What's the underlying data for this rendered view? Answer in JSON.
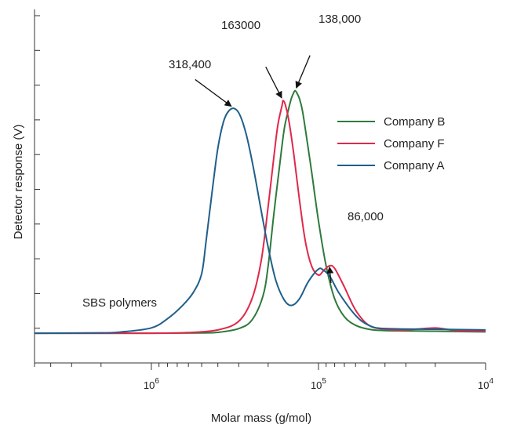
{
  "chart_data": {
    "type": "line",
    "title": "",
    "xlabel": "Molar mass (g/mol)",
    "ylabel": "Detector response (V)",
    "x_scale": "log",
    "x_reversed": true,
    "xlim": [
      5000000,
      10000
    ],
    "ylim": [
      -0.45,
      4.9
    ],
    "x_ticks": [
      {
        "value": 1000000,
        "base": "10",
        "exp": "6"
      },
      {
        "value": 100000,
        "base": "10",
        "exp": "5"
      },
      {
        "value": 10000,
        "base": "10",
        "exp": "4"
      }
    ],
    "y_tick_count": 11,
    "grid": false,
    "legend": {
      "position": "right"
    },
    "series": [
      {
        "name": "Company B",
        "color": "#2e7a3c",
        "points": [
          [
            5000000,
            0
          ],
          [
            1000000,
            0
          ],
          [
            500000,
            0.004
          ],
          [
            400000,
            0.013
          ],
          [
            300000,
            0.07
          ],
          [
            250000,
            0.2
          ],
          [
            215000,
            0.56
          ],
          [
            200000,
            1.02
          ],
          [
            185000,
            1.8
          ],
          [
            170000,
            2.58
          ],
          [
            160000,
            3.1
          ],
          [
            150000,
            3.42
          ],
          [
            145000,
            3.56
          ],
          [
            140000,
            3.65
          ],
          [
            138000,
            3.67
          ],
          [
            135000,
            3.64
          ],
          [
            130000,
            3.55
          ],
          [
            125000,
            3.38
          ],
          [
            120000,
            3.1
          ],
          [
            110000,
            2.45
          ],
          [
            100000,
            1.7
          ],
          [
            90000,
            1.02
          ],
          [
            80000,
            0.52
          ],
          [
            70000,
            0.25
          ],
          [
            60000,
            0.12
          ],
          [
            50000,
            0.06
          ],
          [
            40000,
            0.04
          ],
          [
            20000,
            0.03
          ],
          [
            10000,
            0.02
          ]
        ]
      },
      {
        "name": "Company F",
        "color": "#e0284a",
        "points": [
          [
            5000000,
            0
          ],
          [
            1000000,
            0
          ],
          [
            600000,
            0.01
          ],
          [
            400000,
            0.05
          ],
          [
            300000,
            0.18
          ],
          [
            250000,
            0.52
          ],
          [
            220000,
            1.1
          ],
          [
            200000,
            1.92
          ],
          [
            185000,
            2.66
          ],
          [
            175000,
            3.15
          ],
          [
            165000,
            3.45
          ],
          [
            163000,
            3.52
          ],
          [
            158000,
            3.46
          ],
          [
            150000,
            3.2
          ],
          [
            140000,
            2.68
          ],
          [
            130000,
            2.02
          ],
          [
            120000,
            1.4
          ],
          [
            110000,
            1.02
          ],
          [
            100000,
            0.88
          ],
          [
            93000,
            0.95
          ],
          [
            86000,
            1.02
          ],
          [
            80000,
            0.98
          ],
          [
            70000,
            0.7
          ],
          [
            60000,
            0.35
          ],
          [
            50000,
            0.12
          ],
          [
            40000,
            0.06
          ],
          [
            30000,
            0.05
          ],
          [
            20000,
            0.08
          ],
          [
            15000,
            0.04
          ],
          [
            10000,
            0.03
          ]
        ]
      },
      {
        "name": "Company A",
        "color": "#1f5f8b",
        "points": [
          [
            5000000,
            0
          ],
          [
            2000000,
            0.005
          ],
          [
            1500000,
            0.02
          ],
          [
            1000000,
            0.08
          ],
          [
            800000,
            0.22
          ],
          [
            650000,
            0.42
          ],
          [
            560000,
            0.62
          ],
          [
            500000,
            0.9
          ],
          [
            470000,
            1.4
          ],
          [
            430000,
            2.2
          ],
          [
            400000,
            2.8
          ],
          [
            370000,
            3.2
          ],
          [
            345000,
            3.36
          ],
          [
            318400,
            3.4
          ],
          [
            295000,
            3.3
          ],
          [
            270000,
            3.0
          ],
          [
            245000,
            2.5
          ],
          [
            220000,
            1.85
          ],
          [
            200000,
            1.3
          ],
          [
            180000,
            0.8
          ],
          [
            160000,
            0.5
          ],
          [
            145000,
            0.42
          ],
          [
            130000,
            0.52
          ],
          [
            115000,
            0.78
          ],
          [
            100000,
            0.97
          ],
          [
            93000,
            0.95
          ],
          [
            85000,
            0.85
          ],
          [
            75000,
            0.6
          ],
          [
            60000,
            0.27
          ],
          [
            50000,
            0.12
          ],
          [
            40000,
            0.07
          ],
          [
            20000,
            0.06
          ],
          [
            10000,
            0.05
          ]
        ]
      }
    ],
    "annotations": [
      {
        "text": "318,400",
        "arrow_to": [
          318400,
          3.4
        ]
      },
      {
        "text": "163000",
        "arrow_to": [
          163000,
          3.52
        ]
      },
      {
        "text": "138,000",
        "arrow_to": [
          138000,
          3.67
        ]
      },
      {
        "text": "86,000",
        "arrow_to": [
          86000,
          1.02
        ]
      },
      {
        "text": "SBS polymers"
      }
    ]
  }
}
